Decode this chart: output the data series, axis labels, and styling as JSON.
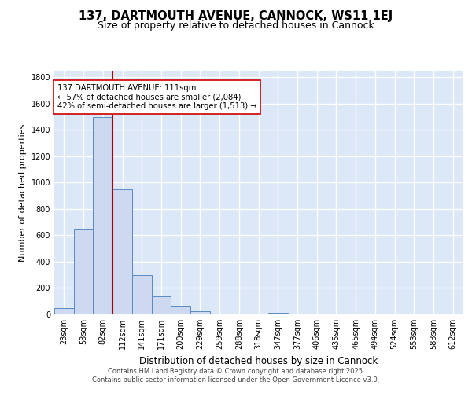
{
  "title": "137, DARTMOUTH AVENUE, CANNOCK, WS11 1EJ",
  "subtitle": "Size of property relative to detached houses in Cannock",
  "xlabel": "Distribution of detached houses by size in Cannock",
  "ylabel": "Number of detached properties",
  "bin_labels": [
    "23sqm",
    "53sqm",
    "82sqm",
    "112sqm",
    "141sqm",
    "171sqm",
    "200sqm",
    "229sqm",
    "259sqm",
    "288sqm",
    "318sqm",
    "347sqm",
    "377sqm",
    "406sqm",
    "435sqm",
    "465sqm",
    "494sqm",
    "524sqm",
    "553sqm",
    "583sqm",
    "612sqm"
  ],
  "bar_values": [
    50,
    650,
    1500,
    950,
    300,
    135,
    65,
    25,
    5,
    0,
    0,
    10,
    0,
    0,
    0,
    0,
    0,
    0,
    0,
    0,
    0
  ],
  "bar_color": "#ccd9f0",
  "bar_edge_color": "#5b8ac4",
  "vline_color": "#aa0000",
  "vline_pos": 2.5,
  "annotation_text": "137 DARTMOUTH AVENUE: 111sqm\n← 57% of detached houses are smaller (2,084)\n42% of semi-detached houses are larger (1,513) →",
  "annotation_box_color": "#ffffff",
  "annotation_box_edge": "#cc0000",
  "ylim": [
    0,
    1850
  ],
  "yticks": [
    0,
    200,
    400,
    600,
    800,
    1000,
    1200,
    1400,
    1600,
    1800
  ],
  "footer_line1": "Contains HM Land Registry data © Crown copyright and database right 2025.",
  "footer_line2": "Contains public sector information licensed under the Open Government Licence v3.0.",
  "fig_bg_color": "#ffffff",
  "plot_bg_color": "#dce8f8",
  "grid_color": "#ffffff",
  "title_fontsize": 10.5,
  "subtitle_fontsize": 9,
  "ylabel_fontsize": 8,
  "xlabel_fontsize": 8.5,
  "tick_fontsize": 7,
  "footer_fontsize": 6
}
